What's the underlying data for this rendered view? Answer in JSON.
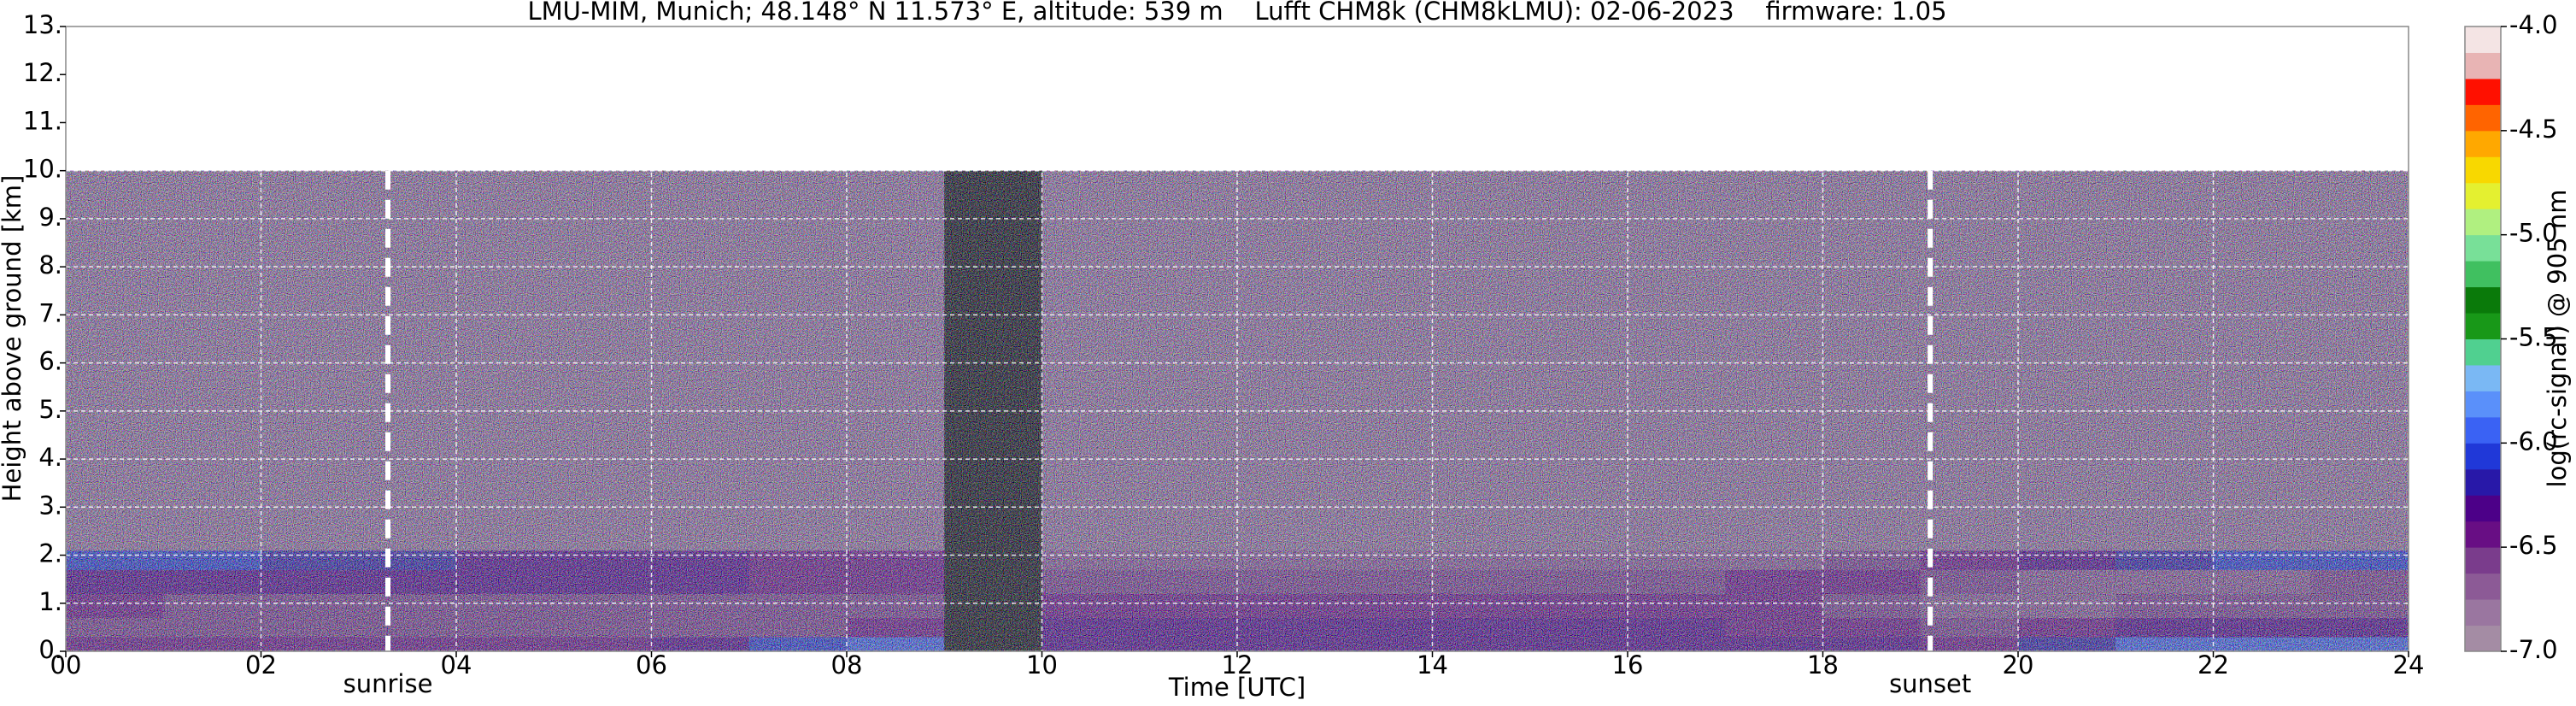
{
  "chart_data": {
    "type": "heatmap",
    "title": "LMU-MIM, Munich; 48.148° N 11.573° E, altitude: 539 m    Lufft CHM8k (CHM8kLMU): 02-06-2023    firmware: 1.05",
    "x_label": "Time [UTC]",
    "y_label": "Height above ground [km]",
    "colorbar_label": "log(rc-signal) @ 905 nm",
    "xlim": [
      0,
      24
    ],
    "xticks": [
      {
        "value": 0,
        "label": "00"
      },
      {
        "value": 2,
        "label": "02"
      },
      {
        "value": 4,
        "label": "04"
      },
      {
        "value": 6,
        "label": "06"
      },
      {
        "value": 8,
        "label": "08"
      },
      10,
      12,
      14,
      16,
      18,
      20,
      22,
      24
    ],
    "ylim": [
      0,
      13
    ],
    "yticks": [
      {
        "value": 0,
        "label": "0."
      },
      {
        "value": 1,
        "label": "1."
      },
      {
        "value": 2,
        "label": "2."
      },
      {
        "value": 3,
        "label": "3."
      },
      {
        "value": 4,
        "label": "4."
      },
      {
        "value": 5,
        "label": "5."
      },
      {
        "value": 6,
        "label": "6."
      },
      {
        "value": 7,
        "label": "7."
      },
      {
        "value": 8,
        "label": "8."
      },
      {
        "value": 9,
        "label": "9."
      },
      {
        "value": 10,
        "label": "10."
      },
      {
        "value": 11,
        "label": "11."
      },
      {
        "value": 12,
        "label": "12."
      },
      {
        "value": 13,
        "label": "13."
      }
    ],
    "grid": true,
    "clim": [
      -7,
      -4
    ],
    "cticks": [
      {
        "value": -4,
        "label": "-4.0"
      },
      {
        "value": -4.5,
        "label": "-4.5"
      },
      {
        "value": -5,
        "label": "-5.0"
      },
      {
        "value": -5.5,
        "label": "-5.5"
      },
      {
        "value": -6,
        "label": "-6.0"
      },
      {
        "value": -6.5,
        "label": "-6.5"
      },
      {
        "value": -7,
        "label": "-7.0"
      }
    ],
    "colors": [
      "#a48ca4",
      "#9a76a0",
      "#8c5a96",
      "#7a3c8c",
      "#680e84",
      "#4c0088",
      "#2818a8",
      "#2038d8",
      "#3a62f4",
      "#5a90fa",
      "#7ab8f4",
      "#50d090",
      "#189818",
      "#0a7a0a",
      "#40c060",
      "#78e098",
      "#b0f080",
      "#e4f030",
      "#f8d800",
      "#ffa800",
      "#ff6400",
      "#ff1000",
      "#e8b4b4",
      "#f4e4e4"
    ],
    "missing_color": "#000000",
    "xbins": [
      0,
      1,
      2,
      3,
      4,
      5,
      6,
      7,
      8,
      9,
      10,
      11,
      12,
      13,
      14,
      15,
      16,
      17,
      18,
      19,
      20,
      21,
      22,
      23,
      24
    ],
    "ybins": [
      0,
      0.3,
      0.7,
      1.2,
      1.7,
      2.1,
      10
    ],
    "z": [
      [
        -6.4,
        -6.4,
        -6.4,
        -6.4,
        -6.4,
        -6.4,
        -6.3,
        -6.1,
        -6.0,
        null,
        -6.3,
        -6.3,
        -6.3,
        -6.3,
        -6.3,
        -6.3,
        -6.3,
        -6.3,
        -6.3,
        -6.5,
        -6.2,
        -6.0,
        -5.9,
        -5.9
      ],
      [
        -6.6,
        -6.6,
        -6.6,
        -6.6,
        -6.6,
        -6.6,
        -6.6,
        -6.6,
        -6.5,
        null,
        -6.3,
        -6.3,
        -6.3,
        -6.3,
        -6.3,
        -6.3,
        -6.3,
        -6.4,
        -6.5,
        -6.6,
        -6.4,
        -6.3,
        -6.3,
        -6.3
      ],
      [
        -6.5,
        -6.6,
        -6.6,
        -6.6,
        -6.6,
        -6.6,
        -6.6,
        -6.6,
        -6.6,
        null,
        -6.4,
        -6.4,
        -6.4,
        -6.4,
        -6.4,
        -6.4,
        -6.4,
        -6.5,
        -6.6,
        -6.7,
        -6.7,
        -6.6,
        -6.6,
        -6.6
      ],
      [
        -6.3,
        -6.3,
        -6.3,
        -6.3,
        -6.3,
        -6.3,
        -6.3,
        -6.4,
        -6.4,
        null,
        -6.6,
        -6.6,
        -6.6,
        -6.6,
        -6.6,
        -6.6,
        -6.6,
        -6.5,
        -6.5,
        -6.6,
        -6.7,
        -6.7,
        -6.7,
        -6.6
      ],
      [
        -6.1,
        -6.1,
        -6.2,
        -6.2,
        -6.3,
        -6.3,
        -6.3,
        -6.4,
        -6.5,
        null,
        -6.7,
        -6.7,
        -6.7,
        -6.7,
        -6.7,
        -6.7,
        -6.7,
        -6.7,
        -6.6,
        -6.4,
        -6.3,
        -6.2,
        -6.1,
        -6.1
      ],
      [
        -6.8,
        -6.8,
        -6.8,
        -6.8,
        -6.8,
        -6.8,
        -6.8,
        -6.8,
        -6.8,
        null,
        -6.8,
        -6.8,
        -6.8,
        -6.8,
        -6.8,
        -6.8,
        -6.8,
        -6.8,
        -6.8,
        -6.8,
        -6.8,
        -6.8,
        -6.8,
        -6.8
      ]
    ],
    "annotations": [
      {
        "label": "sunrise",
        "x": 3.3
      },
      {
        "label": "sunset",
        "x": 19.1
      }
    ]
  }
}
